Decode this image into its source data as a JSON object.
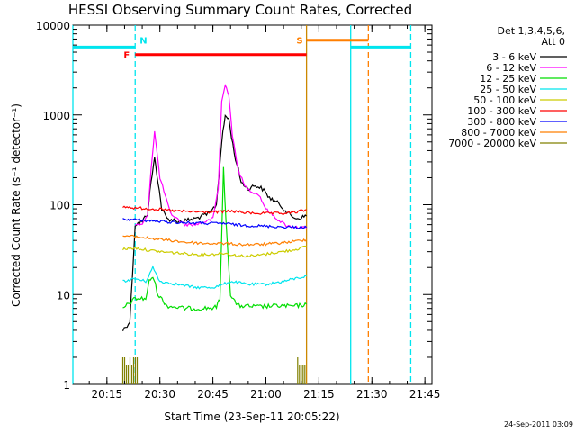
{
  "chart_data": {
    "type": "line",
    "title": "HESSI Observing Summary Count Rates, Corrected",
    "xlabel": "Start Time (23-Sep-11 20:05:22)",
    "ylabel": "Corrected Count Rate (s⁻¹ detector⁻¹)",
    "y_scale": "log",
    "ylim": [
      1,
      10000
    ],
    "xlim": [
      "20:05:22",
      "21:47:00"
    ],
    "x_ticks": [
      "20:15",
      "20:30",
      "20:45",
      "21:00",
      "21:15",
      "21:30",
      "21:45"
    ],
    "y_ticks": [
      "1",
      "10",
      "100",
      "1000",
      "10000"
    ],
    "grid": false,
    "legend_position": "right",
    "legend_header": [
      "Det 1,3,4,5,6,",
      "Att 0"
    ],
    "timestamp": "24-Sep-2011 03:09",
    "series": [
      {
        "name": "3 - 6 keV",
        "color": "#000000",
        "x": [
          "20:19:30",
          "20:21:30",
          "20:23:00",
          "20:25:00",
          "20:26:30",
          "20:27:30",
          "20:28:30",
          "20:29:30",
          "20:30:30",
          "20:32:00",
          "20:36:00",
          "20:40:00",
          "20:44:00",
          "20:46:00",
          "20:47:30",
          "20:48:30",
          "20:49:30",
          "20:51:00",
          "20:53:00",
          "20:55:00",
          "20:57:00",
          "20:59:00",
          "21:01:00",
          "21:04:00",
          "21:07:00",
          "21:09:00",
          "21:11:30"
        ],
        "y": [
          4,
          5,
          60,
          65,
          80,
          180,
          330,
          180,
          90,
          70,
          65,
          70,
          80,
          100,
          500,
          980,
          900,
          380,
          180,
          150,
          165,
          150,
          120,
          100,
          75,
          70,
          75
        ]
      },
      {
        "name": "6 - 12 keV",
        "color": "#ff00ff",
        "x": [
          "20:23:00",
          "20:25:00",
          "20:26:30",
          "20:27:30",
          "20:28:30",
          "20:30:00",
          "20:33:00",
          "20:37:00",
          "20:40:00",
          "20:43:00",
          "20:45:00",
          "20:46:30",
          "20:47:30",
          "20:48:30",
          "20:49:30",
          "20:50:30",
          "20:52:00",
          "20:54:00",
          "20:56:00",
          "20:58:00",
          "21:00:00",
          "21:03:00",
          "21:06:00",
          "21:09:00",
          "21:11:30"
        ],
        "y": [
          60,
          60,
          75,
          250,
          650,
          200,
          80,
          60,
          60,
          65,
          70,
          150,
          1400,
          2150,
          1700,
          600,
          260,
          160,
          140,
          130,
          90,
          70,
          58,
          56,
          55
        ]
      },
      {
        "name": "12 - 25 keV",
        "color": "#00dd00",
        "x": [
          "20:19:30",
          "20:23:00",
          "20:26:00",
          "20:27:00",
          "20:28:00",
          "20:29:30",
          "20:32:00",
          "20:37:00",
          "20:42:00",
          "20:46:00",
          "20:47:00",
          "20:48:00",
          "20:48:40",
          "20:50:00",
          "20:52:00",
          "20:58:00",
          "21:03:00",
          "21:08:00",
          "21:11:30"
        ],
        "y": [
          7,
          9,
          9,
          14,
          16,
          10,
          7.5,
          7,
          7,
          7.2,
          9,
          250,
          70,
          10,
          7.5,
          7.3,
          7.5,
          7.4,
          7.8
        ]
      },
      {
        "name": "25 - 50 keV",
        "color": "#00e5ee",
        "x": [
          "20:19:30",
          "20:23:00",
          "20:26:00",
          "20:28:00",
          "20:30:00",
          "20:35:00",
          "20:40:00",
          "20:45:00",
          "20:48:00",
          "20:50:00",
          "20:55:00",
          "21:00:00",
          "21:05:00",
          "21:08:00",
          "21:11:30"
        ],
        "y": [
          14,
          15,
          14,
          20,
          14,
          13,
          12,
          12,
          13,
          14,
          13,
          13,
          14,
          15,
          16
        ]
      },
      {
        "name": "50 - 100 keV",
        "color": "#cccc00",
        "x": [
          "20:19:30",
          "20:23:00",
          "20:27:00",
          "20:30:00",
          "20:35:00",
          "20:40:00",
          "20:45:00",
          "20:48:00",
          "20:52:00",
          "20:57:00",
          "21:02:00",
          "21:07:00",
          "21:11:30"
        ],
        "y": [
          32,
          33,
          31,
          30,
          29,
          28,
          28,
          29,
          27,
          27,
          29,
          31,
          34
        ]
      },
      {
        "name": "100 - 300 keV",
        "color": "#ff0000",
        "x": [
          "20:19:30",
          "20:23:00",
          "20:28:00",
          "20:32:00",
          "20:37:00",
          "20:42:00",
          "20:47:00",
          "20:50:00",
          "20:55:00",
          "21:00:00",
          "21:05:00",
          "21:08:00",
          "21:11:30"
        ],
        "y": [
          95,
          92,
          90,
          87,
          84,
          83,
          83,
          85,
          81,
          80,
          80,
          82,
          88
        ]
      },
      {
        "name": "300 - 800 keV",
        "color": "#0000ff",
        "x": [
          "20:19:30",
          "20:23:00",
          "20:28:00",
          "20:33:00",
          "20:38:00",
          "20:43:00",
          "20:48:00",
          "20:53:00",
          "20:58:00",
          "21:03:00",
          "21:08:00",
          "21:11:30"
        ],
        "y": [
          69,
          68,
          66,
          64,
          63,
          62,
          62,
          59,
          58,
          57,
          56,
          56
        ]
      },
      {
        "name": "800 - 7000 keV",
        "color": "#ff7f00",
        "x": [
          "20:19:30",
          "20:23:00",
          "20:28:00",
          "20:33:00",
          "20:38:00",
          "20:43:00",
          "20:48:00",
          "20:53:00",
          "20:58:00",
          "21:03:00",
          "21:08:00",
          "21:11:30"
        ],
        "y": [
          45,
          44,
          42,
          40,
          38,
          37,
          37,
          36,
          36,
          37,
          39,
          41
        ]
      },
      {
        "name": "7000 - 20000 keV",
        "color": "#808000",
        "x": [
          "20:19:30",
          "20:22:00",
          "20:25:00",
          "20:27:00",
          "21:09:00",
          "21:11:30"
        ],
        "y": [
          2,
          1,
          2,
          1,
          2,
          1
        ]
      }
    ],
    "flag_bars": [
      {
        "label": "N",
        "color": "#00e5ee",
        "x": [
          [
            "20:05:22",
            "20:23:00"
          ],
          [
            "21:24:00",
            "21:41:00"
          ]
        ],
        "level": 5700
      },
      {
        "label": "F",
        "color": "#ff0000",
        "x": [
          [
            "20:23:00",
            "21:11:30"
          ]
        ],
        "level": 4700
      },
      {
        "label": "S",
        "color": "#ff7f00",
        "x": [
          [
            "21:11:30",
            "21:29:00"
          ]
        ],
        "level": 6800
      }
    ],
    "vertical_markers": [
      {
        "x": "20:05:22",
        "color": "#00e5ee",
        "style": "solid"
      },
      {
        "x": "20:23:00",
        "color": "#00e5ee",
        "style": "dashed"
      },
      {
        "x": "21:11:30",
        "color": "#cc8800",
        "style": "solid"
      },
      {
        "x": "21:24:00",
        "color": "#00e5ee",
        "style": "solid"
      },
      {
        "x": "21:29:00",
        "color": "#ff7f00",
        "style": "dashed"
      },
      {
        "x": "21:41:00",
        "color": "#00e5ee",
        "style": "dashed"
      }
    ]
  }
}
